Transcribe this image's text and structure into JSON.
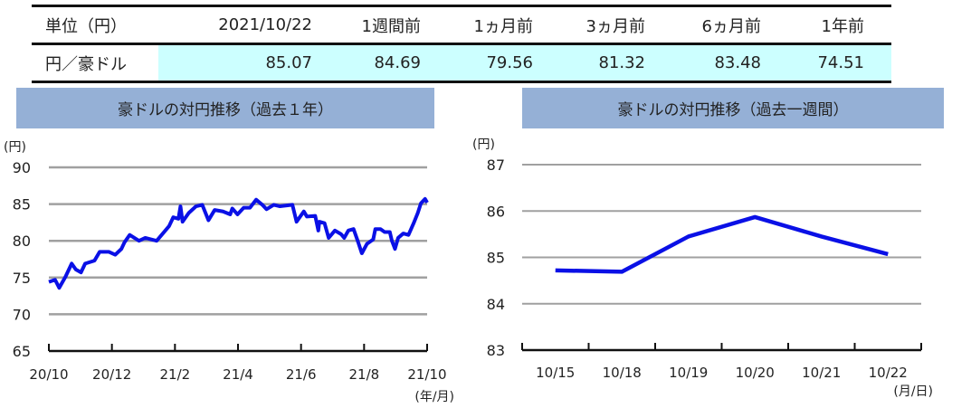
{
  "table": {
    "headers": [
      "単位（円）",
      "2021/10/22",
      "1週間前",
      "1ヵ月前",
      "3ヵ月前",
      "6ヵ月前",
      "1年前"
    ],
    "row_label": "円／豪ドル",
    "values": [
      "85.07",
      "84.69",
      "79.56",
      "81.32",
      "83.48",
      "74.51"
    ]
  },
  "chart_data": [
    {
      "type": "line",
      "title": "豪ドルの対円推移（過去１年）",
      "ylabel": "(円)",
      "xlabel": "(年/月)",
      "ylim": [
        65,
        90
      ],
      "yticks": [
        "65",
        "70",
        "75",
        "80",
        "85",
        "90"
      ],
      "xlim": [
        "2020-10-22",
        "2021-10-22"
      ],
      "xticks": [
        "20/10",
        "20/12",
        "21/2",
        "21/4",
        "21/6",
        "21/8",
        "21/10"
      ],
      "grid": true,
      "color": "#0a10e6",
      "x": [
        "2020-10-22",
        "2020-10-28",
        "2020-11-01",
        "2020-11-07",
        "2020-11-13",
        "2020-11-17",
        "2020-11-22",
        "2020-11-26",
        "2020-12-05",
        "2020-12-10",
        "2020-12-19",
        "2020-12-25",
        "2020-12-31",
        "2021-01-03",
        "2021-01-08",
        "2021-01-17",
        "2021-01-23",
        "2021-02-03",
        "2021-02-09",
        "2021-02-15",
        "2021-02-19",
        "2021-02-24",
        "2021-02-26",
        "2021-02-28",
        "2021-03-06",
        "2021-03-13",
        "2021-03-19",
        "2021-03-25",
        "2021-03-31",
        "2021-04-08",
        "2021-04-15",
        "2021-04-17",
        "2021-04-22",
        "2021-04-28",
        "2021-05-04",
        "2021-05-10",
        "2021-05-16",
        "2021-05-20",
        "2021-05-27",
        "2021-06-02",
        "2021-06-14",
        "2021-06-18",
        "2021-06-25",
        "2021-06-28",
        "2021-07-06",
        "2021-07-09",
        "2021-07-10",
        "2021-07-15",
        "2021-07-19",
        "2021-07-25",
        "2021-07-31",
        "2021-08-03",
        "2021-08-07",
        "2021-08-12",
        "2021-08-16",
        "2021-08-20",
        "2021-08-25",
        "2021-08-31",
        "2021-09-02",
        "2021-09-07",
        "2021-09-11",
        "2021-09-16",
        "2021-09-18",
        "2021-09-21",
        "2021-09-24",
        "2021-09-29",
        "2021-10-04",
        "2021-10-09",
        "2021-10-13",
        "2021-10-16",
        "2021-10-20",
        "2021-10-22"
      ],
      "y": [
        74.4,
        74.7,
        73.6,
        75.1,
        76.9,
        76.1,
        75.7,
        76.9,
        77.3,
        78.5,
        78.5,
        78.1,
        78.9,
        79.8,
        80.8,
        80.0,
        80.4,
        80.0,
        81.0,
        82.0,
        83.2,
        83.0,
        84.7,
        82.6,
        83.8,
        84.7,
        84.9,
        82.8,
        84.2,
        84.0,
        83.6,
        84.4,
        83.6,
        84.5,
        84.5,
        85.6,
        84.9,
        84.3,
        84.9,
        84.7,
        84.9,
        82.6,
        84.0,
        83.3,
        83.4,
        81.4,
        82.6,
        82.4,
        80.4,
        81.4,
        80.9,
        80.4,
        81.4,
        81.6,
        80.0,
        78.3,
        79.6,
        80.2,
        81.6,
        81.6,
        81.2,
        81.2,
        80.0,
        78.9,
        80.4,
        81.0,
        80.8,
        82.4,
        83.8,
        85.1,
        85.7,
        85.2
      ]
    },
    {
      "type": "line",
      "title": "豪ドルの対円推移（過去一週間）",
      "ylabel": "(円)",
      "xlabel": "(月/日)",
      "ylim": [
        83,
        87
      ],
      "yticks": [
        "83",
        "84",
        "85",
        "86",
        "87"
      ],
      "grid": true,
      "color": "#0a10e6",
      "categories": [
        "10/15",
        "10/18",
        "10/19",
        "10/20",
        "10/21",
        "10/22"
      ],
      "values": [
        84.72,
        84.69,
        85.45,
        85.87,
        85.45,
        85.07
      ]
    }
  ]
}
